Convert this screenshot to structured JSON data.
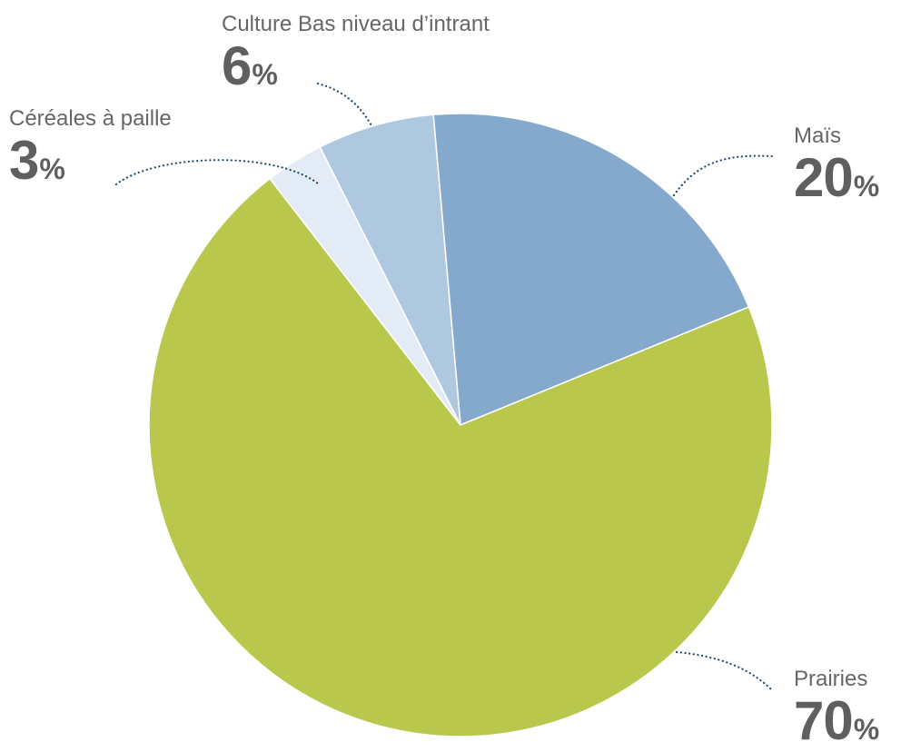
{
  "chart_data": {
    "type": "pie",
    "title": "",
    "unit": "%",
    "slices": [
      {
        "label": "Maïs",
        "value": 20,
        "color": "#85a9cd"
      },
      {
        "label": "Prairies",
        "value": 70,
        "color": "#b9c84c"
      },
      {
        "label": "Céréales à paille",
        "value": 3,
        "color": "#e3ecf6"
      },
      {
        "label": "Culture Bas niveau d’intrant",
        "value": 6,
        "color": "#aec8e0"
      }
    ],
    "leader_line_color": "#1f4b6e"
  }
}
